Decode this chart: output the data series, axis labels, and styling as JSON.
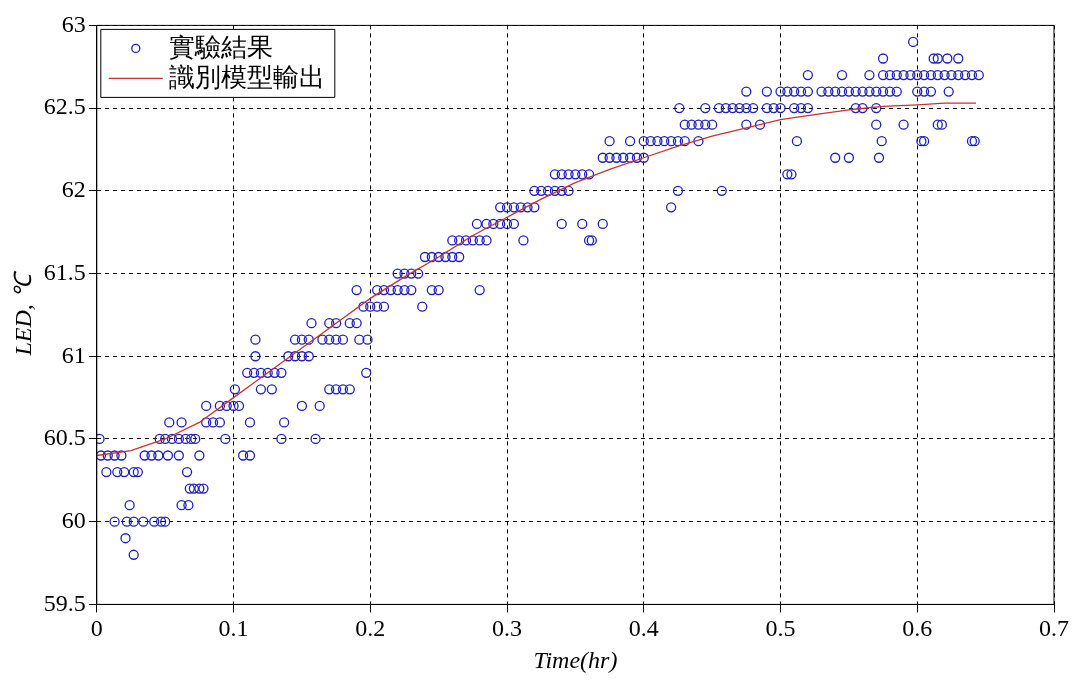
{
  "chart_data": {
    "type": "scatter",
    "xlabel": "Time(hr)",
    "ylabel": "LED, ℃",
    "xlim": [
      0,
      0.7
    ],
    "xticks": [
      0,
      0.1,
      0.2,
      0.3,
      0.4,
      0.5,
      0.6,
      0.7
    ],
    "ylim": [
      59.5,
      63
    ],
    "yticks": [
      59.5,
      60,
      60.5,
      61,
      61.5,
      62,
      62.5,
      63
    ],
    "grid": true,
    "legend": "top left",
    "series": [
      {
        "name": "實驗結果",
        "color": "#1f1fbf",
        "marker": "circle",
        "x": [
          0.002,
          0.003,
          0.008,
          0.013,
          0.018,
          0.035,
          0.04,
          0.045,
          0.052,
          0.06,
          0.075,
          0.107,
          0.112,
          0.007,
          0.015,
          0.02,
          0.027,
          0.03,
          0.066,
          0.013,
          0.022,
          0.027,
          0.034,
          0.042,
          0.047,
          0.05,
          0.021,
          0.027,
          0.024,
          0.062,
          0.067,
          0.046,
          0.05,
          0.055,
          0.06,
          0.065,
          0.069,
          0.072,
          0.094,
          0.135,
          0.16,
          0.053,
          0.062,
          0.08,
          0.085,
          0.09,
          0.112,
          0.137,
          0.068,
          0.071,
          0.075,
          0.078,
          0.08,
          0.09,
          0.095,
          0.1,
          0.104,
          0.15,
          0.163,
          0.101,
          0.12,
          0.128,
          0.17,
          0.175,
          0.18,
          0.185,
          0.11,
          0.115,
          0.12,
          0.125,
          0.13,
          0.135,
          0.197,
          0.116,
          0.14,
          0.145,
          0.15,
          0.155,
          0.116,
          0.145,
          0.15,
          0.155,
          0.165,
          0.17,
          0.175,
          0.18,
          0.192,
          0.198,
          0.157,
          0.17,
          0.175,
          0.185,
          0.19,
          0.195,
          0.2,
          0.205,
          0.21,
          0.19,
          0.205,
          0.21,
          0.215,
          0.22,
          0.225,
          0.23,
          0.245,
          0.25,
          0.28,
          0.22,
          0.225,
          0.23,
          0.235,
          0.238,
          0.24,
          0.245,
          0.25,
          0.255,
          0.26,
          0.265,
          0.26,
          0.265,
          0.27,
          0.275,
          0.28,
          0.285,
          0.278,
          0.285,
          0.29,
          0.295,
          0.3,
          0.305,
          0.295,
          0.3,
          0.305,
          0.31,
          0.315,
          0.32,
          0.312,
          0.36,
          0.362,
          0.34,
          0.355,
          0.37,
          0.32,
          0.325,
          0.33,
          0.335,
          0.34,
          0.345,
          0.335,
          0.34,
          0.345,
          0.35,
          0.355,
          0.36,
          0.37,
          0.375,
          0.38,
          0.385,
          0.39,
          0.395,
          0.4,
          0.375,
          0.39,
          0.4,
          0.405,
          0.41,
          0.415,
          0.42,
          0.425,
          0.43,
          0.44,
          0.42,
          0.425,
          0.426,
          0.43,
          0.435,
          0.44,
          0.445,
          0.45,
          0.445,
          0.455,
          0.46,
          0.465,
          0.457,
          0.47,
          0.475,
          0.48,
          0.49,
          0.495,
          0.5,
          0.51,
          0.515,
          0.52,
          0.475,
          0.49,
          0.5,
          0.505,
          0.51,
          0.515,
          0.52,
          0.53,
          0.535,
          0.54,
          0.475,
          0.485,
          0.505,
          0.508,
          0.512,
          0.52,
          0.545,
          0.545,
          0.55,
          0.555,
          0.56,
          0.565,
          0.57,
          0.575,
          0.555,
          0.57,
          0.54,
          0.55,
          0.572,
          0.57,
          0.574,
          0.565,
          0.575,
          0.58,
          0.585,
          0.59,
          0.595,
          0.6,
          0.605,
          0.61,
          0.575,
          0.58,
          0.585,
          0.6,
          0.605,
          0.597,
          0.615,
          0.62,
          0.625,
          0.63,
          0.635,
          0.64,
          0.645,
          0.612,
          0.615,
          0.622,
          0.63,
          0.61,
          0.623,
          0.603,
          0.605,
          0.64,
          0.642,
          0.59,
          0.615,
          0.618,
          0.56
        ],
        "values": [
          60.5,
          60.4,
          60.4,
          60.4,
          60.4,
          60.4,
          60.4,
          60.4,
          60.4,
          60.4,
          60.4,
          60.4,
          60.4,
          60.3,
          60.3,
          60.3,
          60.3,
          60.3,
          60.3,
          60.0,
          60.0,
          60.0,
          60.0,
          60.0,
          60.0,
          60.0,
          59.9,
          59.8,
          60.1,
          60.1,
          60.1,
          60.5,
          60.5,
          60.5,
          60.5,
          60.5,
          60.5,
          60.5,
          60.5,
          60.5,
          60.5,
          60.6,
          60.6,
          60.6,
          60.6,
          60.6,
          60.6,
          60.6,
          60.2,
          60.2,
          60.2,
          60.2,
          60.7,
          60.7,
          60.7,
          60.7,
          60.7,
          60.7,
          60.7,
          60.8,
          60.8,
          60.8,
          60.8,
          60.8,
          60.8,
          60.8,
          60.9,
          60.9,
          60.9,
          60.9,
          60.9,
          60.9,
          60.9,
          61.0,
          61.0,
          61.0,
          61.0,
          61.0,
          61.1,
          61.1,
          61.1,
          61.1,
          61.1,
          61.1,
          61.1,
          61.1,
          61.1,
          61.1,
          61.2,
          61.2,
          61.2,
          61.2,
          61.2,
          61.3,
          61.3,
          61.3,
          61.3,
          61.4,
          61.4,
          61.4,
          61.4,
          61.4,
          61.4,
          61.4,
          61.4,
          61.4,
          61.4,
          61.5,
          61.5,
          61.5,
          61.5,
          61.3,
          61.6,
          61.6,
          61.6,
          61.6,
          61.6,
          61.6,
          61.7,
          61.7,
          61.7,
          61.7,
          61.7,
          61.7,
          61.8,
          61.8,
          61.8,
          61.8,
          61.8,
          61.8,
          61.9,
          61.9,
          61.9,
          61.9,
          61.9,
          61.9,
          61.7,
          61.7,
          61.7,
          61.8,
          61.8,
          61.8,
          62.0,
          62.0,
          62.0,
          62.0,
          62.0,
          62.0,
          62.1,
          62.1,
          62.1,
          62.1,
          62.1,
          62.1,
          62.2,
          62.2,
          62.2,
          62.2,
          62.2,
          62.2,
          62.2,
          62.3,
          62.3,
          62.3,
          62.3,
          62.3,
          62.3,
          62.3,
          62.3,
          62.3,
          62.3,
          61.9,
          62.0,
          62.5,
          62.4,
          62.4,
          62.4,
          62.4,
          62.4,
          62.5,
          62.5,
          62.5,
          62.5,
          62.0,
          62.5,
          62.5,
          62.5,
          62.5,
          62.5,
          62.5,
          62.5,
          62.5,
          62.5,
          62.6,
          62.6,
          62.6,
          62.6,
          62.6,
          62.6,
          62.6,
          62.6,
          62.6,
          62.6,
          62.4,
          62.4,
          62.1,
          62.1,
          62.3,
          62.7,
          62.7,
          62.6,
          62.6,
          62.6,
          62.6,
          62.6,
          62.6,
          62.6,
          62.5,
          62.5,
          62.2,
          62.2,
          62.2,
          62.4,
          62.3,
          62.7,
          62.7,
          62.7,
          62.7,
          62.7,
          62.7,
          62.7,
          62.7,
          62.7,
          62.8,
          62.6,
          62.6,
          62.6,
          62.6,
          62.9,
          62.7,
          62.7,
          62.7,
          62.7,
          62.7,
          62.7,
          62.7,
          62.8,
          62.8,
          62.8,
          62.8,
          62.6,
          62.6,
          62.3,
          62.3,
          62.3,
          62.3,
          62.4,
          62.4,
          62.4,
          62.5
        ]
      },
      {
        "name": "識別模型輸出",
        "type": "line",
        "color": "#c83232",
        "line_style": "solid",
        "x": [
          0,
          0.025,
          0.05,
          0.075,
          0.1,
          0.125,
          0.15,
          0.175,
          0.2,
          0.225,
          0.25,
          0.275,
          0.3,
          0.325,
          0.35,
          0.375,
          0.4,
          0.425,
          0.45,
          0.475,
          0.5,
          0.525,
          0.55,
          0.575,
          0.6,
          0.62,
          0.643
        ],
        "values": [
          60.4,
          60.43,
          60.5,
          60.6,
          60.75,
          60.9,
          61.05,
          61.2,
          61.35,
          61.48,
          61.6,
          61.73,
          61.84,
          61.95,
          62.05,
          62.13,
          62.2,
          62.27,
          62.33,
          62.38,
          62.43,
          62.46,
          62.49,
          62.51,
          62.52,
          62.53,
          62.53
        ]
      }
    ]
  }
}
